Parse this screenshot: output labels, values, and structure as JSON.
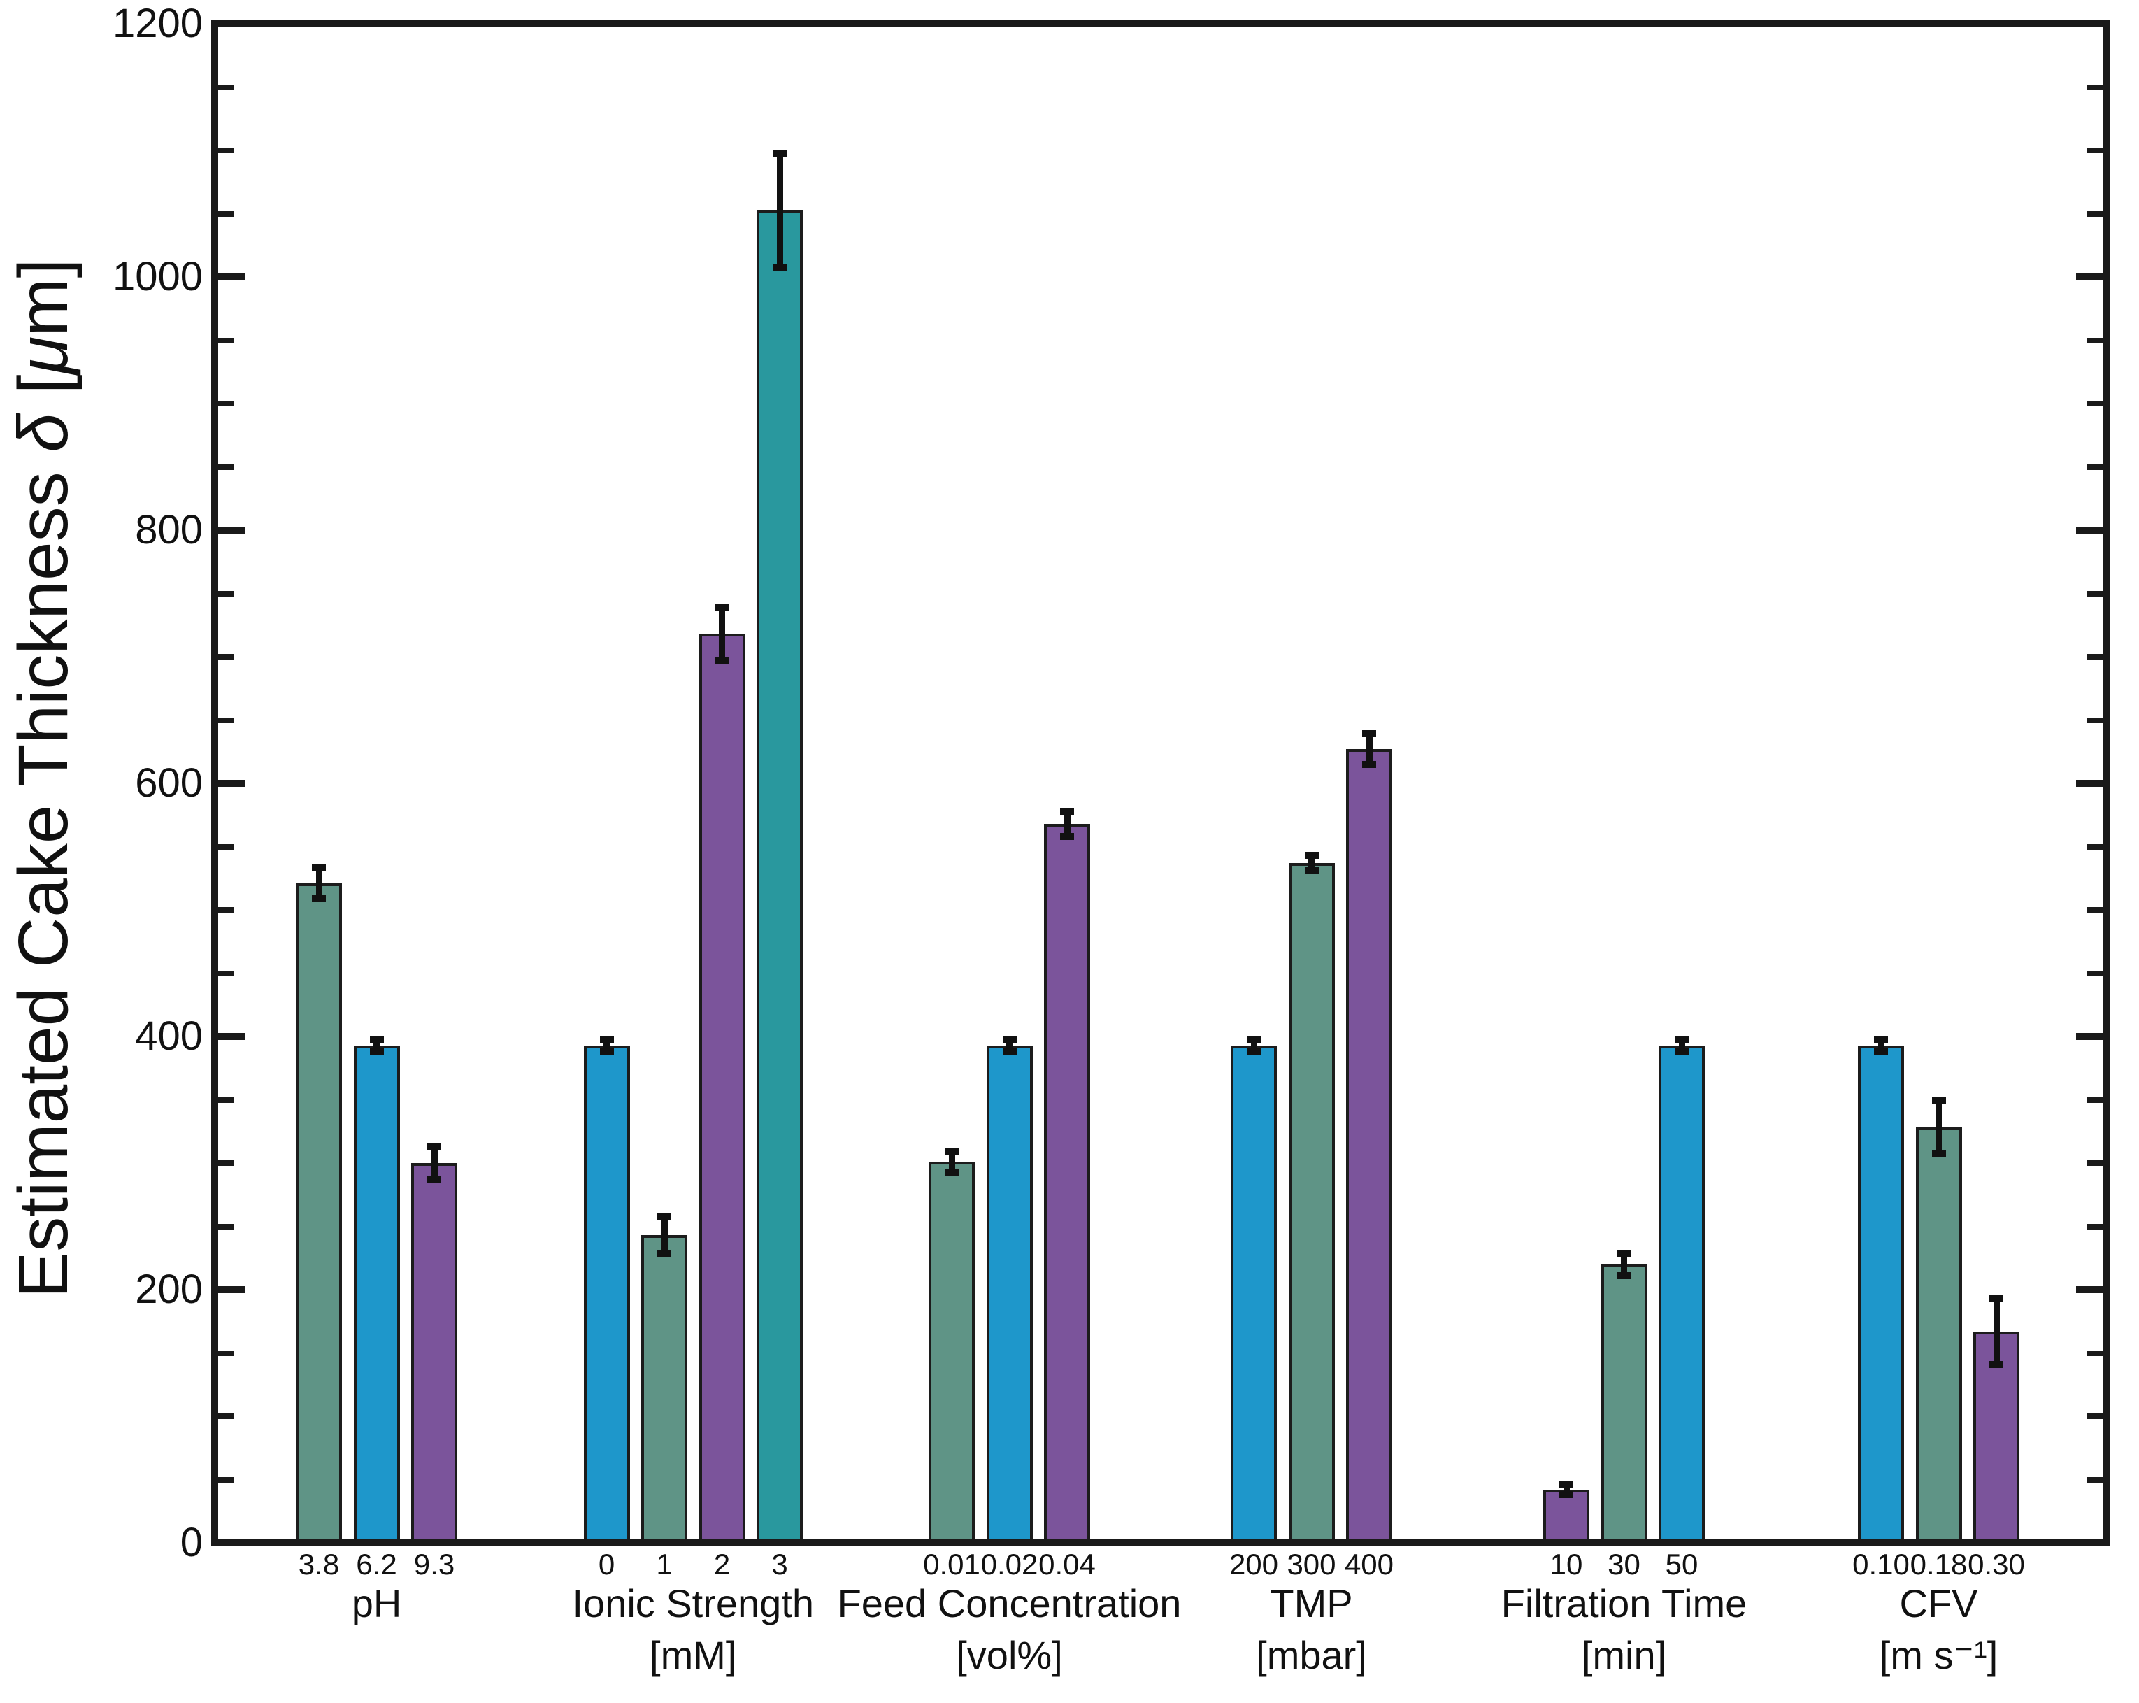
{
  "figure": {
    "background": "#ffffff",
    "axis_color": "#1a1a1a",
    "text_color": "#111111"
  },
  "chart_data": {
    "type": "bar",
    "title": "",
    "xlabel": "",
    "ylabel": "Estimated Cake Thickness δ [μm]",
    "ylabel_parts": [
      {
        "text": "Estimated Cake Thickness ",
        "italic": false
      },
      {
        "text": "δ",
        "italic": true
      },
      {
        "text": " [",
        "italic": false
      },
      {
        "text": "μ",
        "italic": true
      },
      {
        "text": "m]",
        "italic": false
      }
    ],
    "ylim": [
      0,
      1200
    ],
    "yticks_major": [
      0,
      200,
      400,
      600,
      800,
      1000,
      1200
    ],
    "ytick_minor_step": 50,
    "grid": false,
    "legend": "none",
    "error_bars": true,
    "palette": {
      "blue": "#1e97cb",
      "green": "#5f9486",
      "purple": "#7b549b",
      "teal": "#29989e"
    },
    "bar_edge_color": "#1c1c1c",
    "error_bar_color": "#111111",
    "groups": [
      {
        "label": "pH",
        "unit": "",
        "bars": [
          {
            "tick": "3.8",
            "value": 521,
            "error": 12,
            "color": "green"
          },
          {
            "tick": "6.2",
            "value": 393,
            "error": 5,
            "color": "blue"
          },
          {
            "tick": "9.3",
            "value": 300,
            "error": 13,
            "color": "purple"
          }
        ]
      },
      {
        "label": "Ionic Strength",
        "unit": "[mM]",
        "bars": [
          {
            "tick": "0",
            "value": 393,
            "error": 5,
            "color": "blue"
          },
          {
            "tick": "1",
            "value": 243,
            "error": 15,
            "color": "green"
          },
          {
            "tick": "2",
            "value": 718,
            "error": 21,
            "color": "purple"
          },
          {
            "tick": "3",
            "value": 1053,
            "error": 45,
            "color": "teal"
          }
        ]
      },
      {
        "label": "Feed Concentration",
        "unit": "[vol%]",
        "bars": [
          {
            "tick": "0.01",
            "value": 301,
            "error": 8,
            "color": "green"
          },
          {
            "tick": "0.02",
            "value": 393,
            "error": 5,
            "color": "blue"
          },
          {
            "tick": "0.04",
            "value": 568,
            "error": 10,
            "color": "purple"
          }
        ]
      },
      {
        "label": "TMP",
        "unit": "[mbar]",
        "bars": [
          {
            "tick": "200",
            "value": 393,
            "error": 5,
            "color": "blue"
          },
          {
            "tick": "300",
            "value": 537,
            "error": 6,
            "color": "green"
          },
          {
            "tick": "400",
            "value": 627,
            "error": 12,
            "color": "purple"
          }
        ]
      },
      {
        "label": "Filtration Time",
        "unit": "[min]",
        "bars": [
          {
            "tick": "10",
            "value": 42,
            "error": 4,
            "color": "purple"
          },
          {
            "tick": "30",
            "value": 220,
            "error": 9,
            "color": "green"
          },
          {
            "tick": "50",
            "value": 393,
            "error": 5,
            "color": "blue"
          }
        ]
      },
      {
        "label": "CFV",
        "unit": "[m s⁻¹]",
        "bars": [
          {
            "tick": "0.10",
            "value": 393,
            "error": 5,
            "color": "blue"
          },
          {
            "tick": "0.18",
            "value": 328,
            "error": 21,
            "color": "green"
          },
          {
            "tick": "0.30",
            "value": 167,
            "error": 26,
            "color": "purple"
          }
        ]
      }
    ]
  }
}
